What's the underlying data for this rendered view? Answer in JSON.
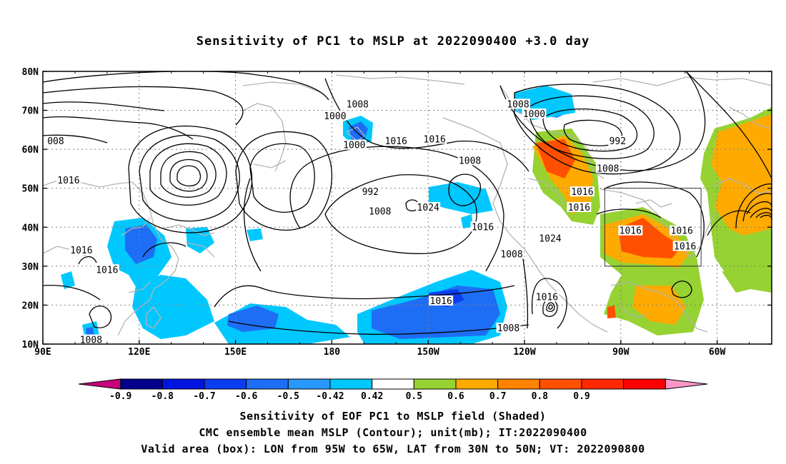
{
  "title": "Sensitivity of PC1 to MSLP at 2022090400 +3.0 day",
  "lon_ticks": [
    "90E",
    "120E",
    "150E",
    "180",
    "150W",
    "120W",
    "90W",
    "60W"
  ],
  "lat_ticks": [
    "80N",
    "70N",
    "60N",
    "50N",
    "40N",
    "30N",
    "20N",
    "10N"
  ],
  "contour_labels": [
    {
      "text": "1008",
      "lon": -172,
      "lat": 71.5
    },
    {
      "text": "1000",
      "lon": -179,
      "lat": 68.5
    },
    {
      "text": "008",
      "lon": 94,
      "lat": 62
    },
    {
      "text": "1000",
      "lon": -173,
      "lat": 61
    },
    {
      "text": "1016",
      "lon": -160,
      "lat": 62
    },
    {
      "text": "1016",
      "lon": -148,
      "lat": 62.5
    },
    {
      "text": "1008",
      "lon": -137,
      "lat": 57
    },
    {
      "text": "1016",
      "lon": 98,
      "lat": 52
    },
    {
      "text": "992",
      "lon": -168,
      "lat": 49
    },
    {
      "text": "1008",
      "lon": -165,
      "lat": 44
    },
    {
      "text": "1024",
      "lon": -150,
      "lat": 45
    },
    {
      "text": "1016",
      "lon": -133,
      "lat": 40
    },
    {
      "text": "1024",
      "lon": -112,
      "lat": 37
    },
    {
      "text": "1016",
      "lon": -103,
      "lat": 45
    },
    {
      "text": "1008",
      "lon": -122,
      "lat": 71.5
    },
    {
      "text": "1000",
      "lon": -117,
      "lat": 69
    },
    {
      "text": "992",
      "lon": -91,
      "lat": 62
    },
    {
      "text": "1008",
      "lon": -94,
      "lat": 55
    },
    {
      "text": "1016",
      "lon": -102,
      "lat": 49
    },
    {
      "text": "1016",
      "lon": -87,
      "lat": 39
    },
    {
      "text": "1016",
      "lon": -71,
      "lat": 39
    },
    {
      "text": "1016",
      "lon": -70,
      "lat": 35
    },
    {
      "text": "1008",
      "lon": -124,
      "lat": 33
    },
    {
      "text": "1016",
      "lon": 102,
      "lat": 34
    },
    {
      "text": "1016",
      "lon": 110,
      "lat": 29
    },
    {
      "text": "1016",
      "lon": -146,
      "lat": 21
    },
    {
      "text": "1016",
      "lon": -113,
      "lat": 22
    },
    {
      "text": "1008",
      "lon": -125,
      "lat": 14
    },
    {
      "text": "1008",
      "lon": 105,
      "lat": 11
    }
  ],
  "colorbar": {
    "colors": [
      "#c8007c",
      "#00008c",
      "#0014e0",
      "#0a3cf0",
      "#1e6ef5",
      "#2898ff",
      "#00c8ff",
      "#ffffff",
      "#96d232",
      "#ffaa00",
      "#ff8200",
      "#ff5000",
      "#ff2800",
      "#ff0000",
      "#ff96c8"
    ],
    "labels": [
      "-0.9",
      "-0.8",
      "-0.7",
      "-0.6",
      "-0.5",
      "-0.42",
      "0.42",
      "0.5",
      "0.6",
      "0.7",
      "0.8",
      "0.9"
    ]
  },
  "captions": [
    "Sensitivity of EOF PC1 to MSLP field (Shaded)",
    "CMC ensemble mean MSLP (Contour); unit(mb); IT:2022090400",
    "Valid area (box): LON from 95W to 65W, LAT from 30N to 50N; VT: 2022090800"
  ],
  "valid_box": {
    "lon_west": -95,
    "lon_east": -65,
    "lat_south": 30,
    "lat_north": 50
  },
  "map_extent": {
    "lon_min": 90,
    "lon_max": 317,
    "lat_min": 10,
    "lat_max": 80
  }
}
